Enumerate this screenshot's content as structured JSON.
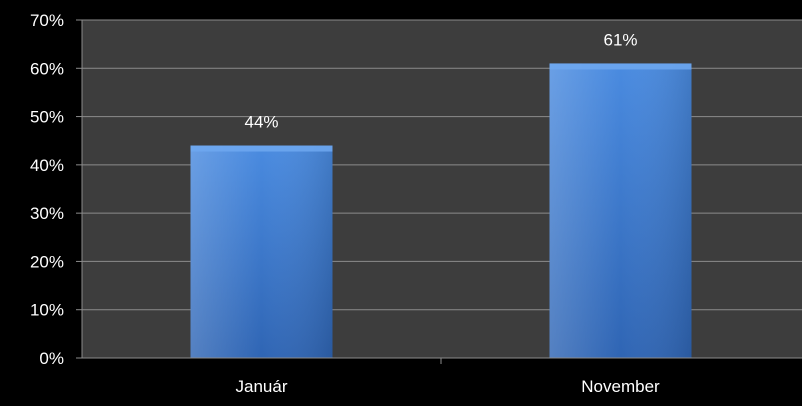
{
  "chart_data": {
    "type": "bar",
    "title": "",
    "xlabel": "",
    "ylabel": "",
    "categories": [
      "Január",
      "November"
    ],
    "values": [
      44,
      61
    ],
    "data_labels": [
      "44%",
      "61%"
    ],
    "ylim": [
      0,
      70
    ],
    "yticks": [
      0,
      10,
      20,
      30,
      40,
      50,
      60,
      70
    ],
    "ytick_labels": [
      "0%",
      "10%",
      "20%",
      "30%",
      "40%",
      "50%",
      "60%",
      "70%"
    ],
    "grid": true,
    "legend": "none"
  },
  "colors": {
    "background": "#000000",
    "plot_area": "#3d3d3d",
    "gridline": "#8c8c8c",
    "bar": "#3f7fd6",
    "bar_top": "#6ea8f0",
    "text": "#ffffff"
  }
}
